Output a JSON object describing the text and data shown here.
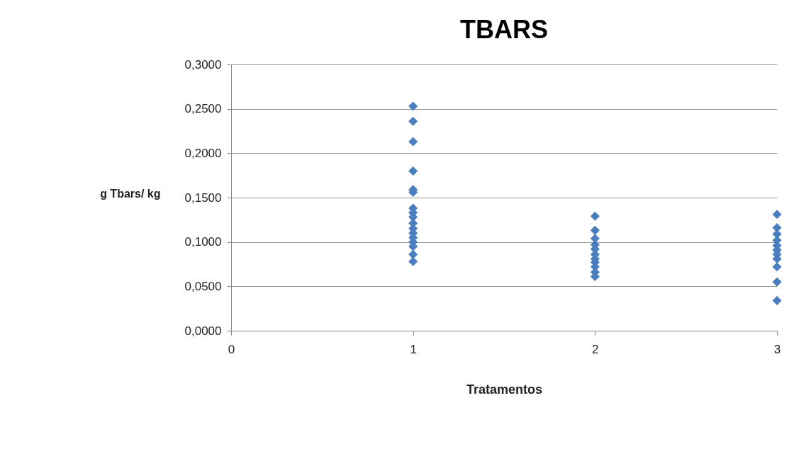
{
  "chart_data": {
    "type": "scatter",
    "title": "TBARS",
    "xlabel": "Tratamentos",
    "ylabel": "g Tbars/ kg",
    "series": [
      {
        "color": "#4a7ebf",
        "x": [
          1,
          1,
          1,
          1,
          1,
          1,
          1,
          1,
          1,
          1,
          1,
          1,
          1,
          1,
          1,
          1,
          1,
          2,
          2,
          2,
          2,
          2,
          2,
          2,
          2,
          2,
          2,
          2,
          3,
          3,
          3,
          3,
          3,
          3,
          3,
          3,
          3,
          3,
          3
        ],
        "values": [
          0.253,
          0.236,
          0.213,
          0.18,
          0.159,
          0.156,
          0.138,
          0.133,
          0.128,
          0.121,
          0.115,
          0.11,
          0.105,
          0.1,
          0.095,
          0.086,
          0.078,
          0.129,
          0.113,
          0.104,
          0.097,
          0.092,
          0.086,
          0.081,
          0.077,
          0.072,
          0.066,
          0.061,
          0.131,
          0.116,
          0.109,
          0.102,
          0.096,
          0.091,
          0.086,
          0.081,
          0.072,
          0.055,
          0.034
        ]
      }
    ],
    "xlim": [
      0,
      3
    ],
    "xticks": [
      0,
      1,
      2,
      3
    ],
    "ylim": [
      0,
      0.3
    ],
    "yticks": [
      {
        "value": 0,
        "label": "0,0000"
      },
      {
        "value": 0.05,
        "label": "0,0500"
      },
      {
        "value": 0.1,
        "label": "0,1000"
      },
      {
        "value": 0.15,
        "label": "0,1500"
      },
      {
        "value": 0.2,
        "label": "0,2000"
      },
      {
        "value": 0.25,
        "label": "0,2500"
      },
      {
        "value": 0.3,
        "label": "0,3000"
      }
    ],
    "grid": "y",
    "marker": "diamond"
  }
}
